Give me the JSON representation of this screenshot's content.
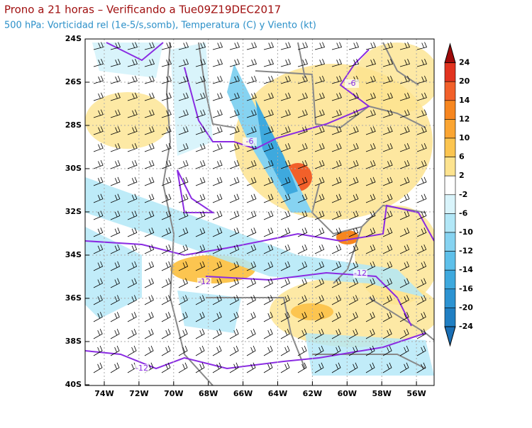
{
  "header": {
    "title": "Prono a 21 horas – Verificando a Tue09Z19DEC2017",
    "subtitle": "500 hPa: Vorticidad rel (1e-5/s,somb), Temperatura (C) y Viento (kt)"
  },
  "map": {
    "lat_labels": [
      "24S",
      "26S",
      "28S",
      "30S",
      "32S",
      "34S",
      "36S",
      "38S",
      "40S"
    ],
    "lon_labels": [
      "74W",
      "72W",
      "70W",
      "68W",
      "66W",
      "64W",
      "62W",
      "60W",
      "58W",
      "56W"
    ],
    "contour_labels": [
      "-6",
      "-6",
      "-12",
      "-12",
      "-12"
    ]
  },
  "colorbar": {
    "labels": [
      "24",
      "20",
      "14",
      "12",
      "10",
      "6",
      "2",
      "-2",
      "-6",
      "-10",
      "-12",
      "-14",
      "-16",
      "-20",
      "-24"
    ],
    "colors": [
      "#9e0a0a",
      "#e2331f",
      "#f2602a",
      "#f7861f",
      "#fba532",
      "#fcc550",
      "#fde38f",
      "#ffffff",
      "#d9f4fb",
      "#b2e7f7",
      "#86d3f1",
      "#5ec0ea",
      "#3ea9de",
      "#2c93d2",
      "#207fc3",
      "#1a6fb5"
    ]
  }
}
